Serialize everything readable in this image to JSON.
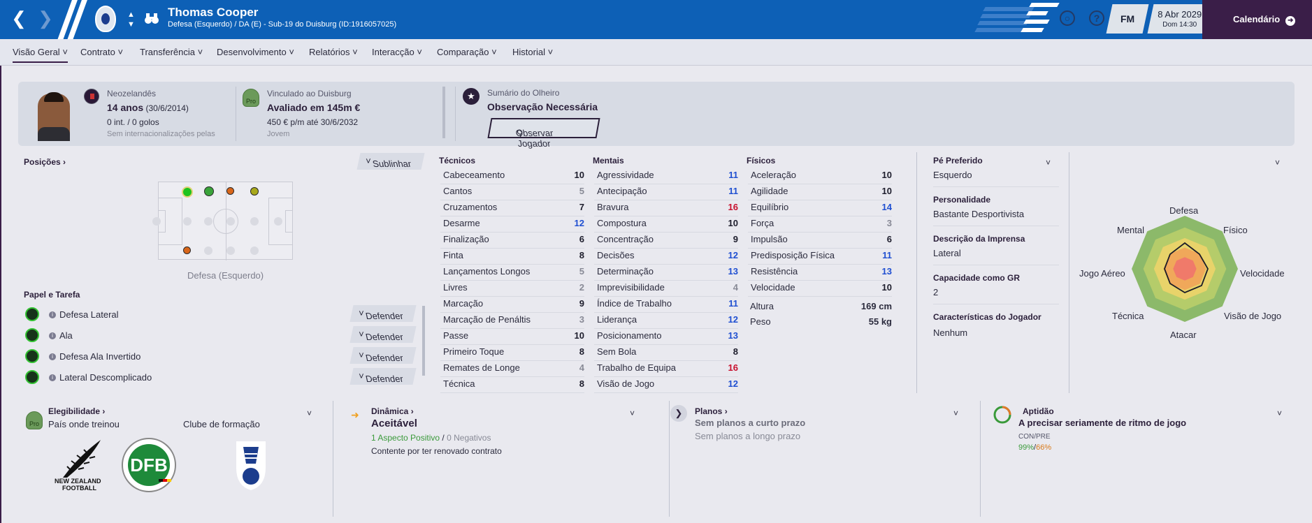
{
  "player": {
    "name": "Thomas Cooper",
    "subtitle": "Defesa (Esquerdo) / DA (E) - Sub-19 do Duisburg (ID:1916057025)"
  },
  "topbar": {
    "date": "8 Abr 2029",
    "time": "Dom 14:30",
    "fm_label": "FM",
    "calendar_label": "Calendário",
    "help_label": "?"
  },
  "tabs": [
    "Visão Geral",
    "Contrato",
    "Transferência",
    "Desenvolvimento",
    "Relatórios",
    "Interacção",
    "Comparação",
    "Historial"
  ],
  "header": {
    "nationality": "Neozelandês",
    "age": "14 anos",
    "birth": "(30/6/2014)",
    "caps": "0 int. / 0 golos",
    "caps_note": "Sem internacionalizações pelas",
    "club_label": "Vinculado ao Duisburg",
    "value": "Avaliado em 145m €",
    "wage": "450 € p/m até 30/6/2032",
    "contract_type": "Jovem",
    "pro_badge": "Pro",
    "scout_label": "Sumário do Olheiro",
    "scout_status": "Observação Necessária",
    "scout_button": "Observar Jogador"
  },
  "positions": {
    "title": "Posições",
    "highlight_button": "Sublinhar",
    "position_label": "Defesa (Esquerdo)"
  },
  "roles": {
    "title": "Papel e Tarefa",
    "items": [
      {
        "name": "Defesa Lateral",
        "duty": "Defender"
      },
      {
        "name": "Ala",
        "duty": "Defender"
      },
      {
        "name": "Defesa Ala Invertido",
        "duty": "Defender"
      },
      {
        "name": "Lateral Descomplicado",
        "duty": "Defender"
      }
    ]
  },
  "technical": {
    "title": "Técnicos",
    "items": [
      {
        "name": "Cabeceamento",
        "value": "10"
      },
      {
        "name": "Cantos",
        "value": "5"
      },
      {
        "name": "Cruzamentos",
        "value": "7"
      },
      {
        "name": "Desarme",
        "value": "12"
      },
      {
        "name": "Finalização",
        "value": "6"
      },
      {
        "name": "Finta",
        "value": "8"
      },
      {
        "name": "Lançamentos Longos",
        "value": "5"
      },
      {
        "name": "Livres",
        "value": "2"
      },
      {
        "name": "Marcação",
        "value": "9"
      },
      {
        "name": "Marcação de Penáltis",
        "value": "3"
      },
      {
        "name": "Passe",
        "value": "10"
      },
      {
        "name": "Primeiro Toque",
        "value": "8"
      },
      {
        "name": "Remates de Longe",
        "value": "4"
      },
      {
        "name": "Técnica",
        "value": "8"
      }
    ]
  },
  "mental": {
    "title": "Mentais",
    "items": [
      {
        "name": "Agressividade",
        "value": "11"
      },
      {
        "name": "Antecipação",
        "value": "11"
      },
      {
        "name": "Bravura",
        "value": "16"
      },
      {
        "name": "Compostura",
        "value": "10"
      },
      {
        "name": "Concentração",
        "value": "9"
      },
      {
        "name": "Decisões",
        "value": "12"
      },
      {
        "name": "Determinação",
        "value": "13"
      },
      {
        "name": "Imprevisibilidade",
        "value": "4"
      },
      {
        "name": "Índice de Trabalho",
        "value": "11"
      },
      {
        "name": "Liderança",
        "value": "12"
      },
      {
        "name": "Posicionamento",
        "value": "13"
      },
      {
        "name": "Sem Bola",
        "value": "8"
      },
      {
        "name": "Trabalho de Equipa",
        "value": "16"
      },
      {
        "name": "Visão de Jogo",
        "value": "12"
      }
    ]
  },
  "physical": {
    "title": "Físicos",
    "items": [
      {
        "name": "Aceleração",
        "value": "10"
      },
      {
        "name": "Agilidade",
        "value": "10"
      },
      {
        "name": "Equilíbrio",
        "value": "14"
      },
      {
        "name": "Força",
        "value": "3"
      },
      {
        "name": "Impulsão",
        "value": "6"
      },
      {
        "name": "Predisposição Física",
        "value": "11"
      },
      {
        "name": "Resistência",
        "value": "13"
      },
      {
        "name": "Velocidade",
        "value": "10"
      }
    ],
    "height_label": "Altura",
    "height": "169 cm",
    "weight_label": "Peso",
    "weight": "55 kg"
  },
  "info": {
    "foot_label": "Pé Preferido",
    "foot": "Esquerdo",
    "personality_label": "Personalidade",
    "personality": "Bastante Desportivista",
    "media_label": "Descrição da Imprensa",
    "media": "Lateral",
    "gk_label": "Capacidade como GR",
    "gk": "2",
    "traits_label": "Características do Jogador",
    "traits": "Nenhum"
  },
  "radar": {
    "labels": [
      "Defesa",
      "Físico",
      "Velocidade",
      "Visão de Jogo",
      "Atacar",
      "Técnica",
      "Jogo Aéreo",
      "Mental"
    ],
    "colors": [
      "#8cb96a",
      "#b5cc6a",
      "#e8d36a",
      "#f0a85a",
      "#f07a6a"
    ]
  },
  "eligibility": {
    "title": "Elegibilidade",
    "country_label": "País onde treinou",
    "club_label": "Clube de formação",
    "nz_text_1": "NEW ZEALAND",
    "nz_text_2": "FOOTBALL"
  },
  "dynamics": {
    "title": "Dinâmica",
    "status": "Aceitável",
    "positive": "1 Aspecto Positivo",
    "separator": "/",
    "negative": "0 Negativos",
    "note": "Contente por ter renovado contrato"
  },
  "plans": {
    "title": "Planos",
    "short": "Sem planos a curto prazo",
    "long": "Sem planos a longo prazo"
  },
  "fitness": {
    "title": "Aptidão",
    "status": "A precisar seriamente de ritmo de jogo",
    "con_label": "CON/PRE",
    "con": "99%",
    "sep": "/",
    "pre": "66%"
  }
}
